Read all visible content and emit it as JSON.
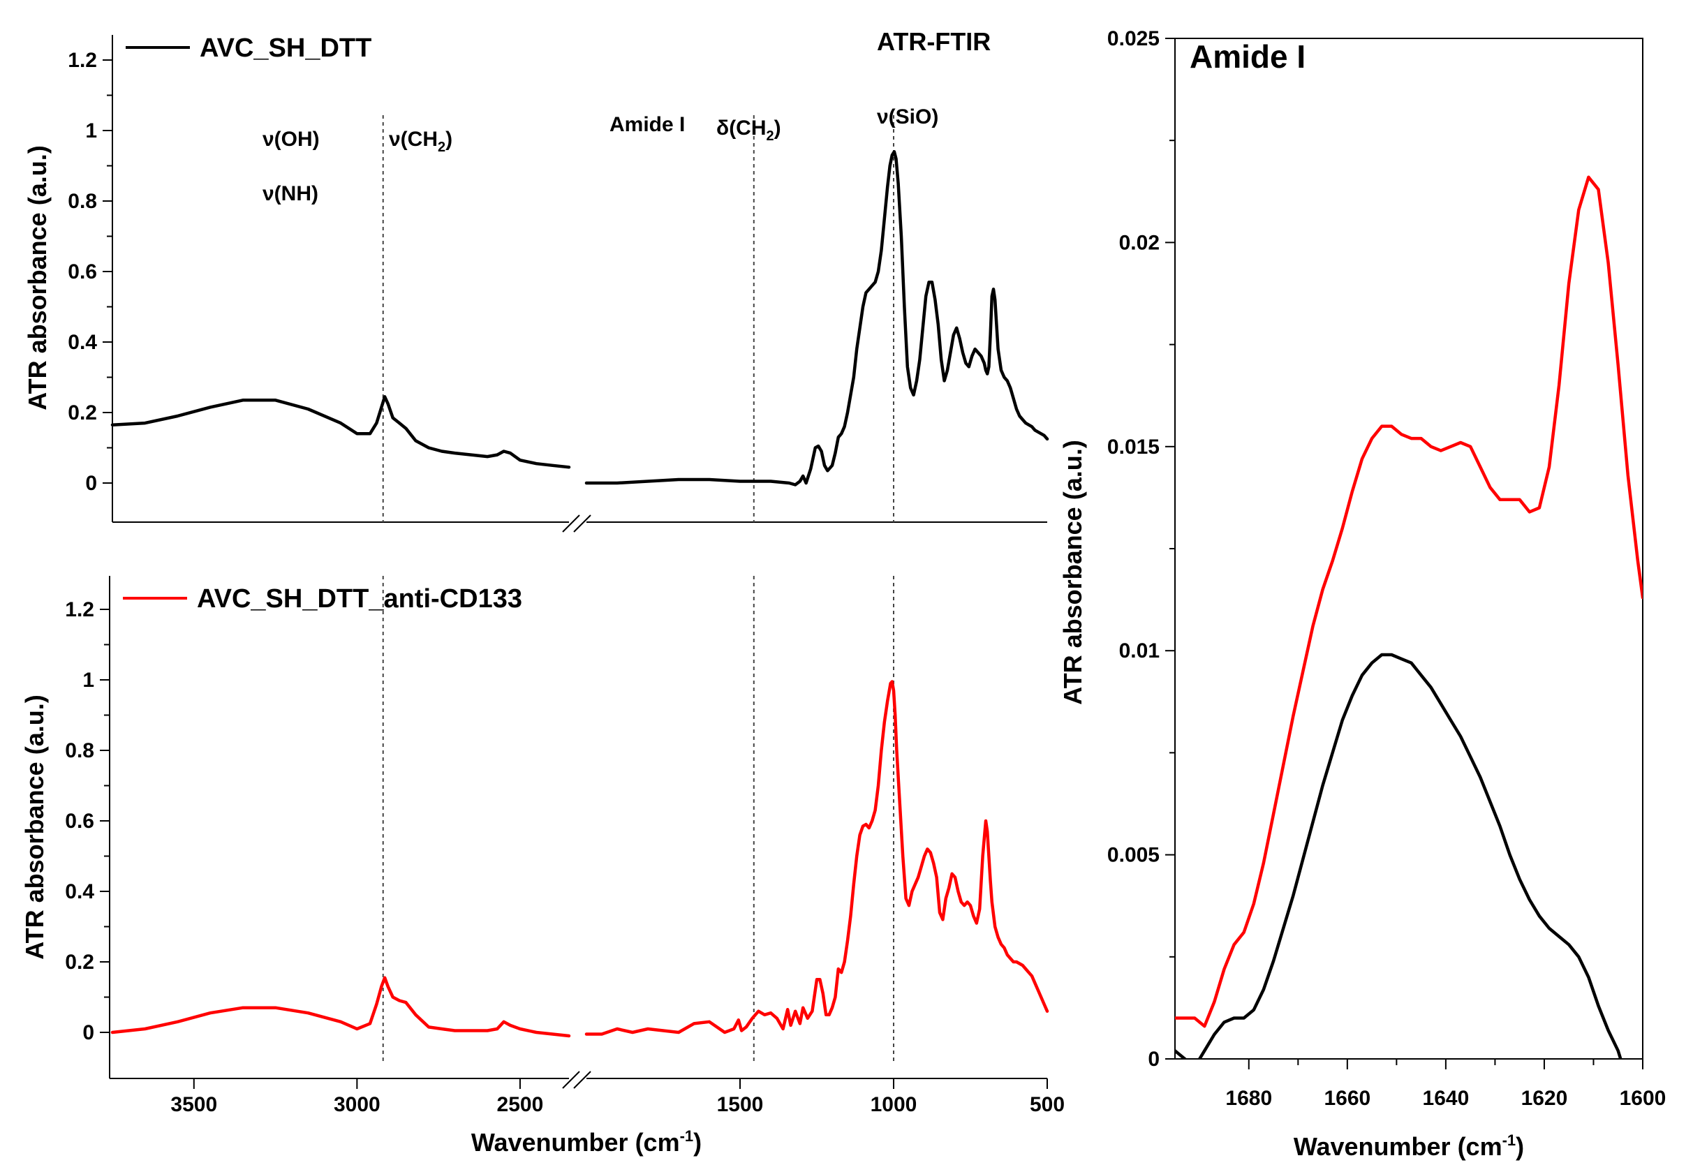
{
  "chart_data": [
    {
      "type": "line",
      "panel": "top-left",
      "title": "ATR-FTIR",
      "xlabel": "Wavenumber (cm",
      "xlabel_sup": "-1",
      "xlabel_close": ")",
      "ylabel": "ATR absorbance (a.u.)",
      "xlim": [
        3750,
        500
      ],
      "x_break": [
        2350,
        2000
      ],
      "ylim": [
        -0.1,
        1.3
      ],
      "yticks": [
        0,
        0.2,
        0.4,
        0.6,
        0.8,
        1,
        1.2
      ],
      "yticklabels": [
        "0",
        "0.2",
        "0.4",
        "0.6",
        "0.8",
        "1",
        "1.2"
      ],
      "annotations": [
        {
          "label": "ν(OH)",
          "x": 3300,
          "y": 0.98
        },
        {
          "label": "ν(NH)",
          "x": 3300,
          "y": 0.82
        },
        {
          "label": "ν(CH",
          "sub": "2",
          "close": ")",
          "x": 2920,
          "y": 0.98
        },
        {
          "label": "Amide I",
          "x": 1650,
          "y": 1.02
        },
        {
          "label": "δ(CH",
          "sub": "2",
          "close": ")",
          "x": 1455,
          "y": 1.0
        },
        {
          "label": "ν(SiO)",
          "x": 1000,
          "y": 1.04
        }
      ],
      "vlines": [
        2920,
        1455,
        1000
      ],
      "series": [
        {
          "name": "AVC_SH_DTT",
          "color": "#000000",
          "x": [
            3750,
            3650,
            3550,
            3450,
            3350,
            3250,
            3150,
            3050,
            3000,
            2960,
            2940,
            2925,
            2915,
            2905,
            2890,
            2870,
            2850,
            2820,
            2780,
            2740,
            2700,
            2650,
            2600,
            2570,
            2550,
            2530,
            2500,
            2450,
            2400,
            2350,
            2000,
            1900,
            1800,
            1700,
            1600,
            1500,
            1400,
            1340,
            1320,
            1305,
            1295,
            1285,
            1270,
            1255,
            1245,
            1235,
            1225,
            1215,
            1200,
            1190,
            1180,
            1170,
            1160,
            1150,
            1140,
            1130,
            1120,
            1110,
            1100,
            1090,
            1080,
            1070,
            1060,
            1050,
            1040,
            1030,
            1020,
            1012,
            1005,
            998,
            992,
            985,
            975,
            965,
            955,
            945,
            935,
            925,
            915,
            905,
            895,
            885,
            875,
            865,
            855,
            845,
            835,
            825,
            815,
            805,
            795,
            785,
            775,
            765,
            755,
            745,
            735,
            725,
            715,
            705,
            700,
            695,
            690,
            685,
            680,
            675,
            670,
            665,
            660,
            650,
            640,
            630,
            620,
            610,
            600,
            590,
            580,
            570,
            560,
            550,
            540,
            530,
            520,
            510,
            500
          ],
          "y": [
            0.165,
            0.17,
            0.19,
            0.215,
            0.235,
            0.235,
            0.21,
            0.17,
            0.14,
            0.14,
            0.17,
            0.215,
            0.245,
            0.225,
            0.185,
            0.17,
            0.155,
            0.12,
            0.1,
            0.09,
            0.085,
            0.08,
            0.075,
            0.08,
            0.09,
            0.085,
            0.065,
            0.055,
            0.05,
            0.045,
            0.0,
            0.0,
            0.005,
            0.01,
            0.01,
            0.005,
            0.005,
            0.0,
            -0.005,
            0.005,
            0.02,
            0.0,
            0.04,
            0.1,
            0.105,
            0.09,
            0.05,
            0.035,
            0.05,
            0.085,
            0.13,
            0.14,
            0.16,
            0.2,
            0.25,
            0.3,
            0.38,
            0.44,
            0.5,
            0.54,
            0.55,
            0.56,
            0.57,
            0.6,
            0.66,
            0.75,
            0.84,
            0.9,
            0.93,
            0.94,
            0.92,
            0.85,
            0.7,
            0.5,
            0.33,
            0.27,
            0.25,
            0.29,
            0.35,
            0.44,
            0.53,
            0.57,
            0.57,
            0.52,
            0.45,
            0.35,
            0.29,
            0.32,
            0.37,
            0.42,
            0.44,
            0.41,
            0.37,
            0.34,
            0.33,
            0.36,
            0.38,
            0.37,
            0.36,
            0.34,
            0.32,
            0.31,
            0.33,
            0.42,
            0.53,
            0.55,
            0.52,
            0.45,
            0.38,
            0.32,
            0.3,
            0.29,
            0.27,
            0.24,
            0.21,
            0.19,
            0.18,
            0.17,
            0.165,
            0.16,
            0.15,
            0.145,
            0.14,
            0.135,
            0.125
          ]
        }
      ]
    },
    {
      "type": "line",
      "panel": "bottom-left",
      "xlabel": "Wavenumber (cm",
      "xlabel_sup": "-1",
      "xlabel_close": ")",
      "ylabel": "ATR absorbance (a.u.)",
      "xlim": [
        3750,
        500
      ],
      "x_break": [
        2350,
        2000
      ],
      "xticks": [
        3500,
        3000,
        2500,
        1500,
        1000,
        500
      ],
      "xticklabels": [
        "3500",
        "3000",
        "2500",
        "1500",
        "1000",
        "500"
      ],
      "ylim": [
        -0.1,
        1.3
      ],
      "yticks": [
        0,
        0.2,
        0.4,
        0.6,
        0.8,
        1,
        1.2
      ],
      "yticklabels": [
        "0",
        "0.2",
        "0.4",
        "0.6",
        "0.8",
        "1",
        "1.2"
      ],
      "vlines": [
        2920,
        1455,
        1000
      ],
      "series": [
        {
          "name": "AVC_SH_DTT_anti-CD133",
          "color": "#ff0000",
          "x": [
            3750,
            3650,
            3550,
            3450,
            3350,
            3250,
            3150,
            3050,
            3000,
            2960,
            2940,
            2925,
            2915,
            2905,
            2890,
            2870,
            2850,
            2820,
            2780,
            2740,
            2700,
            2650,
            2600,
            2570,
            2550,
            2530,
            2500,
            2450,
            2400,
            2350,
            2000,
            1950,
            1900,
            1850,
            1800,
            1750,
            1700,
            1650,
            1600,
            1550,
            1520,
            1505,
            1495,
            1480,
            1460,
            1440,
            1420,
            1400,
            1380,
            1360,
            1345,
            1335,
            1320,
            1305,
            1295,
            1280,
            1265,
            1250,
            1240,
            1230,
            1220,
            1210,
            1200,
            1190,
            1180,
            1170,
            1160,
            1150,
            1140,
            1130,
            1120,
            1110,
            1100,
            1090,
            1080,
            1070,
            1060,
            1050,
            1040,
            1030,
            1020,
            1010,
            1005,
            1000,
            995,
            990,
            980,
            970,
            960,
            950,
            940,
            930,
            920,
            910,
            900,
            890,
            880,
            870,
            860,
            850,
            840,
            830,
            820,
            810,
            800,
            790,
            780,
            770,
            760,
            750,
            740,
            730,
            720,
            710,
            700,
            695,
            690,
            685,
            680,
            670,
            660,
            650,
            640,
            630,
            620,
            610,
            600,
            590,
            580,
            570,
            560,
            550,
            540,
            530,
            520,
            510,
            500
          ],
          "y": [
            0.0,
            0.01,
            0.03,
            0.055,
            0.07,
            0.07,
            0.055,
            0.03,
            0.01,
            0.025,
            0.08,
            0.13,
            0.155,
            0.13,
            0.1,
            0.09,
            0.085,
            0.05,
            0.015,
            0.01,
            0.005,
            0.005,
            0.005,
            0.01,
            0.03,
            0.02,
            0.01,
            0.0,
            -0.005,
            -0.01,
            -0.005,
            -0.005,
            0.01,
            0.0,
            0.01,
            0.005,
            0.0,
            0.025,
            0.03,
            0.0,
            0.01,
            0.035,
            0.005,
            0.015,
            0.04,
            0.06,
            0.05,
            0.055,
            0.04,
            0.01,
            0.065,
            0.02,
            0.06,
            0.025,
            0.07,
            0.04,
            0.06,
            0.15,
            0.15,
            0.11,
            0.05,
            0.05,
            0.07,
            0.1,
            0.18,
            0.17,
            0.2,
            0.26,
            0.33,
            0.42,
            0.5,
            0.56,
            0.585,
            0.59,
            0.58,
            0.6,
            0.63,
            0.7,
            0.8,
            0.88,
            0.94,
            0.99,
            0.995,
            0.97,
            0.9,
            0.8,
            0.65,
            0.5,
            0.38,
            0.36,
            0.4,
            0.42,
            0.44,
            0.47,
            0.5,
            0.52,
            0.51,
            0.48,
            0.44,
            0.34,
            0.32,
            0.38,
            0.41,
            0.45,
            0.44,
            0.4,
            0.37,
            0.36,
            0.37,
            0.36,
            0.33,
            0.31,
            0.35,
            0.5,
            0.6,
            0.57,
            0.5,
            0.43,
            0.37,
            0.3,
            0.27,
            0.25,
            0.24,
            0.22,
            0.21,
            0.2,
            0.2,
            0.195,
            0.19,
            0.18,
            0.17,
            0.16,
            0.14,
            0.12,
            0.1,
            0.08,
            0.06
          ]
        }
      ]
    },
    {
      "type": "line",
      "panel": "right",
      "title": "Amide I",
      "xlabel": "Wavenumber (cm",
      "xlabel_sup": "-1",
      "xlabel_close": ")",
      "ylabel": "ATR absorbance (a.u.)",
      "xlim": [
        1695,
        1600
      ],
      "xticks": [
        1680,
        1660,
        1640,
        1620,
        1600
      ],
      "xticklabels": [
        "1680",
        "1660",
        "1640",
        "1620",
        "1600"
      ],
      "ylim": [
        0,
        0.025
      ],
      "yticks": [
        0,
        0.005,
        0.01,
        0.015,
        0.02,
        0.025
      ],
      "yticklabels": [
        "0",
        "0.005",
        "0.01",
        "0.015",
        "0.02",
        "0.025"
      ],
      "series": [
        {
          "name": "AVC_SH_DTT_anti-CD133",
          "color": "#ff0000",
          "x": [
            1695,
            1693,
            1691,
            1689,
            1687,
            1685,
            1683,
            1681,
            1679,
            1677,
            1675,
            1673,
            1671,
            1669,
            1667,
            1665,
            1663,
            1661,
            1659,
            1657,
            1655,
            1653,
            1651,
            1649,
            1647,
            1645,
            1643,
            1641,
            1639,
            1637,
            1635,
            1633,
            1631,
            1629,
            1627,
            1625,
            1623,
            1621,
            1619,
            1617,
            1615,
            1613,
            1611,
            1609,
            1607,
            1605,
            1603,
            1601,
            1600
          ],
          "y": [
            0.001,
            0.001,
            0.001,
            0.0008,
            0.0014,
            0.0022,
            0.0028,
            0.0031,
            0.0038,
            0.0048,
            0.006,
            0.0072,
            0.0084,
            0.0095,
            0.0106,
            0.0115,
            0.0122,
            0.013,
            0.0139,
            0.0147,
            0.0152,
            0.0155,
            0.0155,
            0.0153,
            0.0152,
            0.0152,
            0.015,
            0.0149,
            0.015,
            0.0151,
            0.015,
            0.0145,
            0.014,
            0.0137,
            0.0137,
            0.0137,
            0.0134,
            0.0135,
            0.0145,
            0.0165,
            0.019,
            0.0208,
            0.0216,
            0.0213,
            0.0195,
            0.017,
            0.0143,
            0.0122,
            0.0113
          ]
        },
        {
          "name": "AVC_SH_DTT",
          "color": "#000000",
          "x": [
            1695,
            1693,
            1691,
            1689,
            1687,
            1685,
            1683,
            1681,
            1679,
            1677,
            1675,
            1673,
            1671,
            1669,
            1667,
            1665,
            1663,
            1661,
            1659,
            1657,
            1655,
            1653,
            1651,
            1649,
            1647,
            1645,
            1643,
            1641,
            1639,
            1637,
            1635,
            1633,
            1631,
            1629,
            1627,
            1625,
            1623,
            1621,
            1619,
            1617,
            1615,
            1613,
            1611,
            1609,
            1607,
            1605,
            1604.5
          ],
          "y": [
            0.0002,
            0.0,
            -0.0002,
            0.0002,
            0.0006,
            0.0009,
            0.001,
            0.001,
            0.0012,
            0.0017,
            0.0024,
            0.0032,
            0.004,
            0.0049,
            0.0058,
            0.0067,
            0.0075,
            0.0083,
            0.0089,
            0.0094,
            0.0097,
            0.0099,
            0.0099,
            0.0098,
            0.0097,
            0.0094,
            0.0091,
            0.0087,
            0.0083,
            0.0079,
            0.0074,
            0.0069,
            0.0063,
            0.0057,
            0.005,
            0.0044,
            0.0039,
            0.0035,
            0.0032,
            0.003,
            0.0028,
            0.0025,
            0.002,
            0.0013,
            0.0007,
            0.0002,
            0.0
          ]
        }
      ]
    }
  ]
}
